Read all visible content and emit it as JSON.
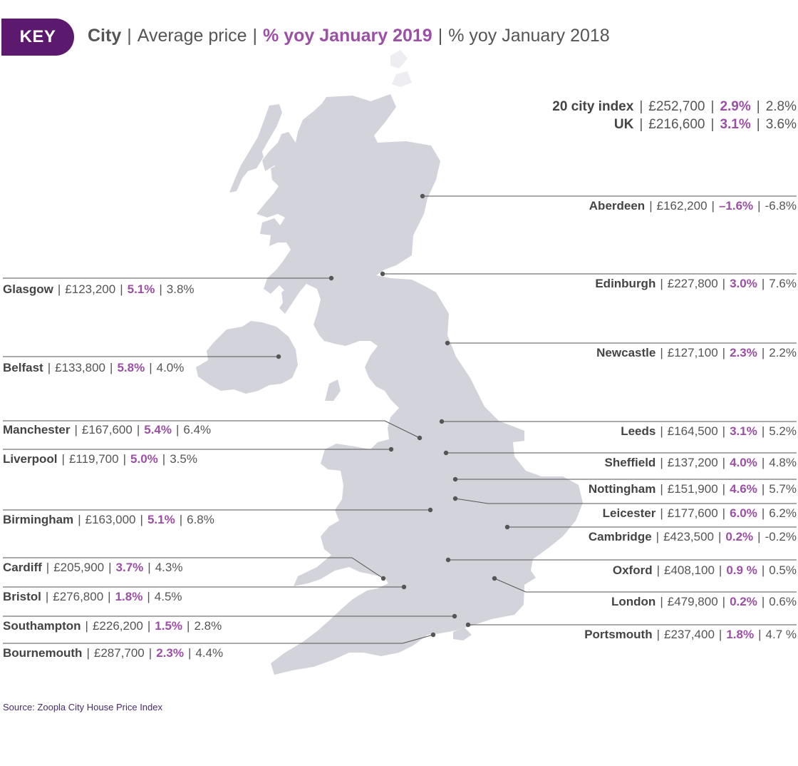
{
  "key": {
    "badge": "KEY",
    "city": "City",
    "avg": "Average price",
    "yoy2019": "% yoy January 2019",
    "yoy2018": "% yoy January 2018"
  },
  "summary": [
    {
      "name": "20 city index",
      "price": "£252,700",
      "yoy2019": "2.9%",
      "yoy2018": "2.8%"
    },
    {
      "name": "UK",
      "price": "£216,600",
      "yoy2019": "3.1%",
      "yoy2018": "3.6%"
    }
  ],
  "cities": [
    {
      "name": "Aberdeen",
      "price": "£162,200",
      "yoy2019": "–1.6%",
      "yoy2018": "-6.8%"
    },
    {
      "name": "Glasgow",
      "price": "£123,200",
      "yoy2019": "5.1%",
      "yoy2018": "3.8%"
    },
    {
      "name": "Edinburgh",
      "price": "£227,800",
      "yoy2019": "3.0%",
      "yoy2018": "7.6%"
    },
    {
      "name": "Newcastle",
      "price": "£127,100",
      "yoy2019": "2.3%",
      "yoy2018": "2.2%"
    },
    {
      "name": "Belfast",
      "price": "£133,800",
      "yoy2019": "5.8%",
      "yoy2018": "4.0%"
    },
    {
      "name": "Manchester",
      "price": "£167,600",
      "yoy2019": "5.4%",
      "yoy2018": "6.4%"
    },
    {
      "name": "Leeds",
      "price": "£164,500",
      "yoy2019": "3.1%",
      "yoy2018": "5.2%"
    },
    {
      "name": "Liverpool",
      "price": "£119,700",
      "yoy2019": "5.0%",
      "yoy2018": "3.5%"
    },
    {
      "name": "Sheffield",
      "price": "£137,200",
      "yoy2019": "4.0%",
      "yoy2018": "4.8%"
    },
    {
      "name": "Nottingham",
      "price": "£151,900",
      "yoy2019": "4.6%",
      "yoy2018": "5.7%"
    },
    {
      "name": "Leicester",
      "price": "£177,600",
      "yoy2019": "6.0%",
      "yoy2018": "6.2%"
    },
    {
      "name": "Birmingham",
      "price": "£163,000",
      "yoy2019": "5.1%",
      "yoy2018": "6.8%"
    },
    {
      "name": "Cambridge",
      "price": "£423,500",
      "yoy2019": "0.2%",
      "yoy2018": "-0.2%"
    },
    {
      "name": "Cardiff",
      "price": "£205,900",
      "yoy2019": "3.7%",
      "yoy2018": "4.3%"
    },
    {
      "name": "Oxford",
      "price": "£408,100",
      "yoy2019": "0.9 %",
      "yoy2018": "0.5%"
    },
    {
      "name": "Bristol",
      "price": "£276,800",
      "yoy2019": "1.8%",
      "yoy2018": "4.5%"
    },
    {
      "name": "London",
      "price": "£479,800",
      "yoy2019": "0.2%",
      "yoy2018": "0.6%"
    },
    {
      "name": "Southampton",
      "price": "£226,200",
      "yoy2019": "1.5%",
      "yoy2018": "2.8%"
    },
    {
      "name": "Portsmouth",
      "price": "£237,400",
      "yoy2019": "1.8%",
      "yoy2018": "4.7 %"
    },
    {
      "name": "Bournemouth",
      "price": "£287,700",
      "yoy2019": "2.3%",
      "yoy2018": "4.4%"
    }
  ],
  "source": "Source: Zoopla City House Price Index",
  "colors": {
    "map": "#d3d3dc",
    "accent": "#9b4fa5",
    "badge": "#5b1a6e",
    "leader": "#555555"
  }
}
